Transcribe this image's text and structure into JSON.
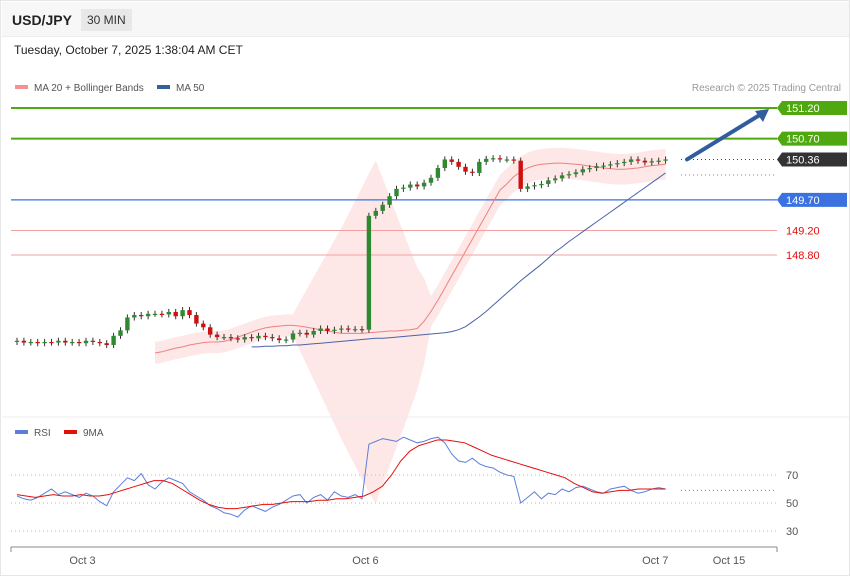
{
  "header": {
    "symbol": "USD/JPY",
    "timeframe": "30 MIN",
    "datetime": "Tuesday, October 7, 2025 1:38:04 AM CET"
  },
  "colors": {
    "resistance": "#4fa80f",
    "support_line": "#3b72e0",
    "support_label_text": "#ffffff",
    "red_levels": "#e60d0d",
    "red_level_lines": "#f2a0a0",
    "current_price": "#333333",
    "bull_candle": "#2f8a2f",
    "bear_candle": "#d01010",
    "bollinger_fill": "#fde3e3",
    "ma20": "#f08080",
    "ma50": "#4a63a8",
    "rsi": "#5b7fd9",
    "rsi_ma": "#e60d0d",
    "arrow": "#2f5d9e"
  },
  "main_panel": {
    "legend": [
      {
        "label": "MA 20 + Bollinger Bands",
        "color": "#f5928f",
        "icon": "legend-swatch-icon"
      },
      {
        "label": "MA 50",
        "color": "#36609a",
        "icon": "legend-swatch-icon"
      }
    ],
    "credit": "Research © 2025 Trading Central",
    "levels": [
      {
        "price": 151.2,
        "label": "151.20",
        "kind": "resistance"
      },
      {
        "price": 150.7,
        "label": "150.70",
        "kind": "resistance"
      },
      {
        "price": 150.36,
        "label": "150.36",
        "kind": "current"
      },
      {
        "price": 149.7,
        "label": "149.70",
        "kind": "pivot"
      },
      {
        "price": 149.2,
        "label": "149.20",
        "kind": "support"
      },
      {
        "price": 148.8,
        "label": "148.80",
        "kind": "support"
      }
    ]
  },
  "rsi_panel": {
    "legend": [
      {
        "label": "RSI",
        "color": "#5b7fd9",
        "icon": "legend-swatch-icon"
      },
      {
        "label": "9MA",
        "color": "#e60d0d",
        "icon": "legend-swatch-icon"
      }
    ],
    "levels": [
      {
        "value": 70,
        "label": "70"
      },
      {
        "value": 50,
        "label": "50"
      },
      {
        "value": 30,
        "label": "30"
      }
    ]
  },
  "x_axis": {
    "ticks": [
      {
        "label": "Oct 3",
        "index": 9.5
      },
      {
        "label": "Oct 6",
        "index": 50.5
      },
      {
        "label": "Oct 7",
        "index": 92.5
      },
      {
        "label": "Oct 15",
        "index": 102
      }
    ]
  },
  "chart_data": {
    "type": "line",
    "x_axis_ticks": [
      "Oct 3",
      "Oct 6",
      "Oct 7",
      "Oct 15"
    ],
    "price": {
      "series": [
        {
          "name": "USD/JPY",
          "values": [
            147.4,
            147.37,
            147.38,
            147.36,
            147.38,
            147.37,
            147.4,
            147.37,
            147.38,
            147.36,
            147.4,
            147.38,
            147.36,
            147.33,
            147.48,
            147.57,
            147.78,
            147.82,
            147.8,
            147.84,
            147.84,
            147.83,
            147.87,
            147.8,
            147.9,
            147.82,
            147.68,
            147.62,
            147.5,
            147.46,
            147.46,
            147.44,
            147.42,
            147.46,
            147.44,
            147.48,
            147.46,
            147.44,
            147.41,
            147.42,
            147.52,
            147.53,
            147.5,
            147.56,
            147.6,
            147.56,
            147.58,
            147.6,
            147.59,
            147.59,
            147.58,
            149.44,
            149.52,
            149.62,
            149.76,
            149.88,
            149.9,
            149.95,
            149.92,
            149.98,
            150.06,
            150.22,
            150.36,
            150.32,
            150.24,
            150.16,
            150.14,
            150.32,
            150.37,
            150.38,
            150.36,
            150.36,
            150.34,
            149.88,
            149.92,
            149.94,
            149.96,
            150.02,
            150.05,
            150.1,
            150.12,
            150.15,
            150.2,
            150.22,
            150.25,
            150.26,
            150.28,
            150.3,
            150.32,
            150.36,
            150.34,
            150.31,
            150.33,
            150.34,
            150.36
          ]
        },
        {
          "name": "MA 20",
          "values": [
            147.2,
            147.22,
            147.25,
            147.28,
            147.3,
            147.33,
            147.35,
            147.37,
            147.38,
            147.38,
            147.39,
            147.42,
            147.46,
            147.5,
            147.54,
            147.58,
            147.61,
            147.63,
            147.64,
            147.65,
            147.65,
            147.64,
            147.62,
            147.6,
            147.58,
            147.56,
            147.54,
            147.52,
            147.52,
            147.52,
            147.52,
            147.53,
            147.54,
            147.55,
            147.56,
            147.56,
            147.57,
            147.58,
            147.6,
            147.72,
            147.88,
            148.06,
            148.26,
            148.46,
            148.66,
            148.86,
            149.06,
            149.26,
            149.46,
            149.66,
            149.86,
            149.96,
            150.08,
            150.16,
            150.22,
            150.26,
            150.28,
            150.29,
            150.3,
            150.3,
            150.29,
            150.28,
            150.27,
            150.25,
            150.24,
            150.22,
            150.21,
            150.2,
            150.2,
            150.21,
            150.22,
            150.24,
            150.26,
            150.27,
            150.28
          ]
        },
        {
          "name": "MA 50",
          "values": [
            147.3,
            147.3,
            147.31,
            147.31,
            147.32,
            147.32,
            147.33,
            147.33,
            147.34,
            147.35,
            147.36,
            147.37,
            147.38,
            147.39,
            147.4,
            147.41,
            147.42,
            147.43,
            147.44,
            147.44,
            147.45,
            147.46,
            147.47,
            147.48,
            147.49,
            147.5,
            147.51,
            147.52,
            147.53,
            147.55,
            147.58,
            147.63,
            147.71,
            147.79,
            147.88,
            147.98,
            148.08,
            148.18,
            148.28,
            148.38,
            148.47,
            148.56,
            148.65,
            148.75,
            148.85,
            148.93,
            149.02,
            149.1,
            149.18,
            149.26,
            149.34,
            149.42,
            149.5,
            149.58,
            149.66,
            149.74,
            149.82,
            149.9,
            149.98,
            150.06,
            150.14
          ]
        }
      ],
      "bollinger_band": {
        "upper_peak": 151.3,
        "lower_trough": 146.7
      },
      "ylim": [
        146.8,
        151.3
      ],
      "arrow": {
        "from": 150.36,
        "to": 151.2
      }
    },
    "rsi": {
      "series": [
        {
          "name": "RSI",
          "values": [
            55,
            53,
            52,
            54,
            57,
            60,
            56,
            58,
            56,
            54,
            57,
            55,
            51,
            48,
            58,
            63,
            68,
            66,
            71,
            63,
            60,
            65,
            68,
            66,
            64,
            58,
            55,
            52,
            48,
            46,
            43,
            42,
            40,
            45,
            48,
            46,
            44,
            47,
            49,
            52,
            55,
            56,
            50,
            54,
            56,
            52,
            58,
            55,
            54,
            56,
            53,
            92,
            94,
            96,
            95,
            94,
            97,
            95,
            93,
            94,
            96,
            97,
            93,
            85,
            80,
            79,
            82,
            78,
            76,
            75,
            72,
            70,
            69,
            50,
            54,
            58,
            53,
            57,
            56,
            60,
            58,
            61,
            62,
            60,
            58,
            57,
            60,
            61,
            62,
            59,
            57,
            58,
            60,
            61,
            60
          ]
        },
        {
          "name": "9MA",
          "values": [
            56,
            55,
            54,
            55,
            56,
            55,
            55,
            56,
            55,
            55,
            56,
            58,
            60,
            62,
            64,
            66,
            66,
            64,
            60,
            56,
            52,
            49,
            47,
            46,
            46,
            47,
            48,
            49,
            49,
            50,
            51,
            51,
            51,
            52,
            52,
            53,
            53,
            54,
            55,
            58,
            62,
            70,
            80,
            87,
            91,
            93,
            95,
            95,
            94,
            93,
            90,
            87,
            84,
            82,
            80,
            78,
            76,
            74,
            72,
            70,
            68,
            64,
            61,
            58,
            57,
            58,
            59,
            59,
            60,
            60,
            60,
            60
          ]
        }
      ],
      "ylim": [
        20,
        100
      ]
    }
  }
}
